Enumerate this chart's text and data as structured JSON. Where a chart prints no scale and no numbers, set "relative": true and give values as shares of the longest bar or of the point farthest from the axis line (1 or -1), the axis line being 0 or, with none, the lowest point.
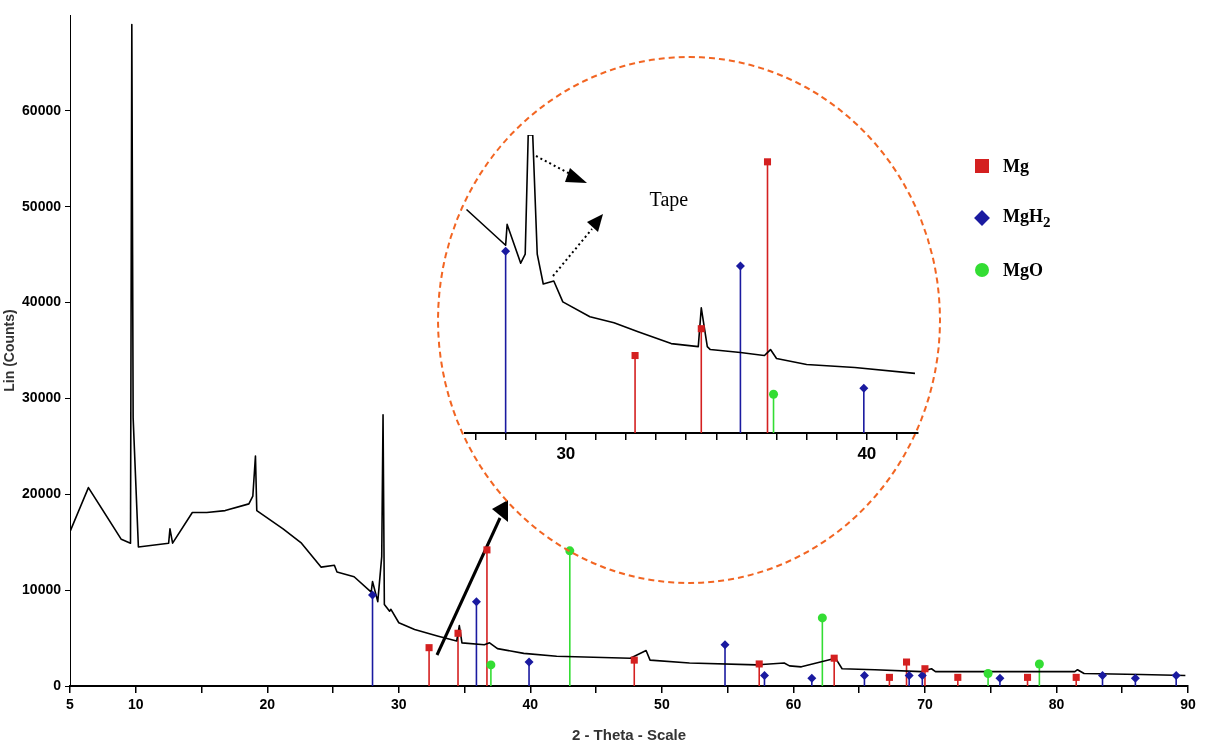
{
  "chart_data": [
    {
      "type": "line",
      "xlabel": "2 - Theta - Scale",
      "ylabel": "Lin (Counts)",
      "xlim": [
        5,
        90
      ],
      "ylim": [
        0,
        70000
      ],
      "xticks": [
        5,
        10,
        {
          "value": 15,
          "label": null
        },
        20,
        {
          "value": 25,
          "label": null
        },
        30,
        {
          "value": 35,
          "label": null
        },
        40,
        {
          "value": 45,
          "label": null
        },
        50,
        {
          "value": 55,
          "label": null
        },
        60,
        {
          "value": 65,
          "label": null
        },
        70,
        {
          "value": 75,
          "label": null
        },
        80,
        {
          "value": 85,
          "label": null
        },
        90
      ],
      "yticks": [
        0,
        10000,
        20000,
        30000,
        40000,
        50000,
        60000
      ],
      "legend": "top right",
      "series": [
        {
          "type": "line",
          "color": "#000000",
          "x": [
            5,
            6.4,
            8.9,
            9.6,
            9.7,
            9.8,
            10.2,
            12.5,
            12.6,
            12.8,
            14.3,
            15.4,
            16.8,
            18.6,
            18.9,
            19.1,
            19.2,
            21.2,
            22.6,
            24.1,
            25.1,
            25.3,
            26.6,
            27.9,
            28.0,
            28.4,
            28.7,
            28.8,
            28.9,
            29.3,
            29.4,
            30.0,
            31.2,
            33.0,
            34.4,
            34.6,
            34.8,
            36.5,
            36.9,
            37.5,
            39.5,
            42.0,
            47.6,
            48.8,
            49.1,
            52.1,
            57.2,
            59.3,
            59.7,
            60.6,
            63.2,
            63.7,
            66.2,
            69.7,
            70.5,
            70.8,
            73.8,
            81.4,
            81.6,
            82.1,
            86.4,
            89.8
          ],
          "values": [
            16100,
            20700,
            15300,
            14900,
            69000,
            28000,
            14500,
            14900,
            16400,
            14900,
            18100,
            18100,
            18300,
            19000,
            19800,
            24000,
            18300,
            16400,
            14900,
            12400,
            12600,
            11900,
            11400,
            9800,
            10900,
            8800,
            13500,
            28300,
            8500,
            7800,
            8000,
            6600,
            5900,
            5200,
            4700,
            6300,
            4500,
            4300,
            4500,
            3900,
            3400,
            3100,
            2900,
            3700,
            2700,
            2400,
            2200,
            2400,
            2100,
            2000,
            2900,
            1800,
            1700,
            1500,
            1800,
            1500,
            1500,
            1500,
            1700,
            1300,
            1200,
            1100
          ]
        },
        {
          "type": "lollipop",
          "name": "Mg",
          "color": "#d42020",
          "marker": "square",
          "x": [
            32.3,
            34.5,
            36.7,
            47.9,
            57.4,
            63.1,
            67.3,
            68.6,
            70.0,
            72.5,
            77.8,
            81.5
          ],
          "values": [
            4000,
            5500,
            14200,
            2700,
            2300,
            2900,
            900,
            2500,
            1800,
            900,
            900,
            900
          ]
        },
        {
          "type": "lollipop",
          "name": "MgH$_{2}$",
          "color": "#1a1aa0",
          "marker": "diamond",
          "x": [
            28.0,
            35.9,
            39.9,
            54.8,
            57.8,
            61.4,
            65.4,
            68.8,
            69.8,
            75.7,
            83.5,
            86.0,
            89.1
          ],
          "values": [
            9500,
            8800,
            2500,
            4300,
            1100,
            800,
            1100,
            1100,
            1100,
            800,
            1100,
            800,
            1100
          ]
        },
        {
          "type": "lollipop",
          "name": "MgO",
          "color": "#33dd33",
          "marker": "circle",
          "x": [
            37.0,
            43.0,
            62.2,
            74.8,
            78.7
          ],
          "values": [
            2200,
            14100,
            7100,
            1300,
            2300
          ]
        }
      ]
    },
    {
      "type": "line",
      "relative": true,
      "tick_labels": "x",
      "xlim": [
        26.65,
        41.7
      ],
      "xticks": [
        {
          "value": 27,
          "label": null
        },
        {
          "value": 28,
          "label": null
        },
        {
          "value": 29,
          "label": null
        },
        30,
        {
          "value": 31,
          "label": null
        },
        {
          "value": 32,
          "label": null
        },
        {
          "value": 33,
          "label": null
        },
        {
          "value": 34,
          "label": null
        },
        {
          "value": 35,
          "label": null
        },
        {
          "value": 36,
          "label": null
        },
        {
          "value": 37,
          "label": null
        },
        {
          "value": 38,
          "label": null
        },
        {
          "value": 39,
          "label": null
        },
        40,
        {
          "value": 41,
          "label": null
        }
      ],
      "annotations": [
        "Tape"
      ],
      "series": [
        {
          "type": "line",
          "color": "#000000",
          "x": [
            26.7,
            28.0,
            28.05,
            28.5,
            28.65,
            28.75,
            28.9,
            29.05,
            29.25,
            29.6,
            29.9,
            30.8,
            31.6,
            32.4,
            33.5,
            34.4,
            34.5,
            34.7,
            34.8,
            35.8,
            36.6,
            36.8,
            37.0,
            38.0,
            39.6,
            41.6
          ],
          "values": [
            0.75,
            0.63,
            0.7,
            0.57,
            0.6,
            1,
            1,
            0.6,
            0.5,
            0.51,
            0.44,
            0.39,
            0.37,
            0.34,
            0.3,
            0.29,
            0.42,
            0.29,
            0.28,
            0.27,
            0.26,
            0.28,
            0.25,
            0.23,
            0.22,
            0.2
          ]
        },
        {
          "type": "lollipop",
          "color": "#d42020",
          "marker": "square",
          "x": [
            32.3,
            34.5,
            36.7
          ],
          "values": [
            0.26,
            0.35,
            0.91
          ]
        },
        {
          "type": "lollipop",
          "color": "#1a1aa0",
          "marker": "diamond",
          "x": [
            28.0,
            35.8,
            39.9
          ],
          "values": [
            0.61,
            0.56,
            0.15
          ]
        },
        {
          "type": "lollipop",
          "color": "#33dd33",
          "marker": "circle",
          "x": [
            36.9
          ],
          "values": [
            0.13
          ]
        }
      ]
    }
  ]
}
